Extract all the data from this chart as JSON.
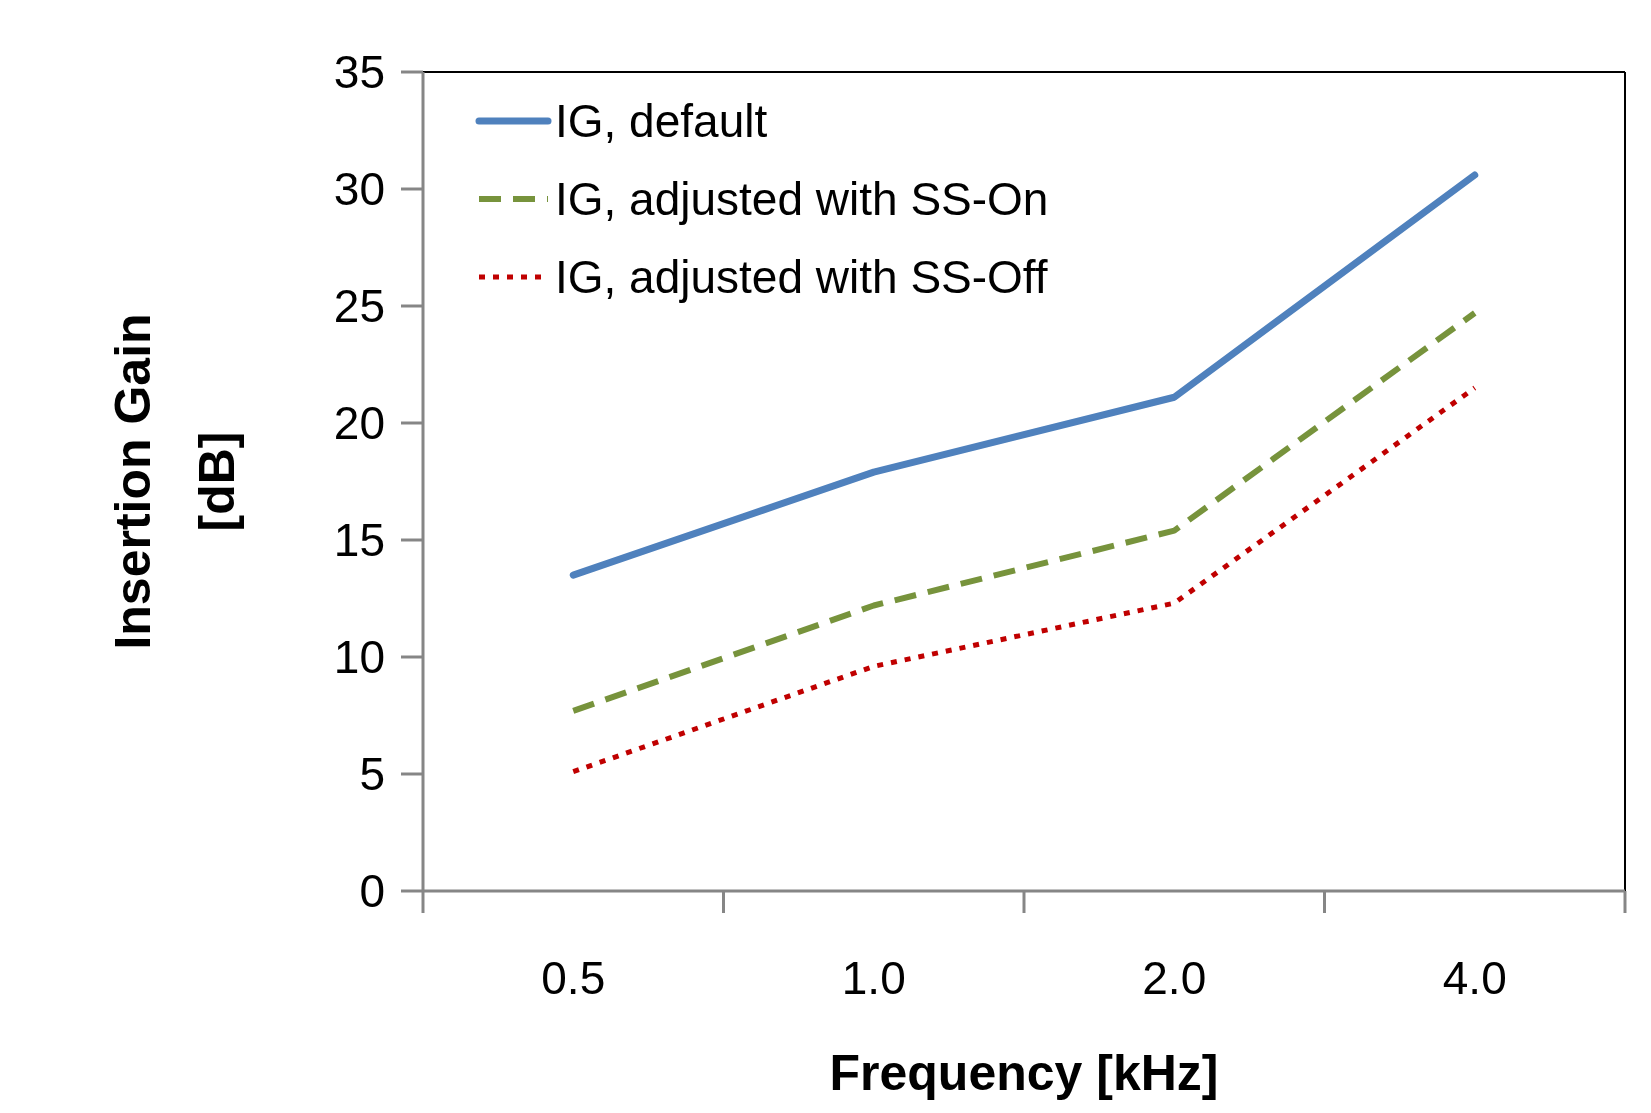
{
  "chart_data": {
    "type": "line",
    "xlabel": "Frequency [kHz]",
    "ylabel": "Insertion Gain [dB]",
    "categories": [
      "0.5",
      "1.0",
      "2.0",
      "4.0"
    ],
    "series": [
      {
        "name": "IG, default",
        "color": "#4f81bd",
        "line_style": "solid",
        "values": [
          13.5,
          17.9,
          21.1,
          30.6
        ]
      },
      {
        "name": "IG, adjusted with SS-On",
        "color": "#77933c",
        "line_style": "dashed",
        "values": [
          7.7,
          12.2,
          15.4,
          24.7
        ]
      },
      {
        "name": "IG, adjusted with SS-Off",
        "color": "#c00000",
        "line_style": "dotted",
        "values": [
          5.1,
          9.6,
          12.3,
          21.5
        ]
      }
    ],
    "ylim": [
      0,
      35
    ],
    "yticks": [
      0,
      5,
      10,
      15,
      20,
      25,
      30,
      35
    ],
    "grid": false,
    "legend": "top left",
    "marker": "none"
  }
}
